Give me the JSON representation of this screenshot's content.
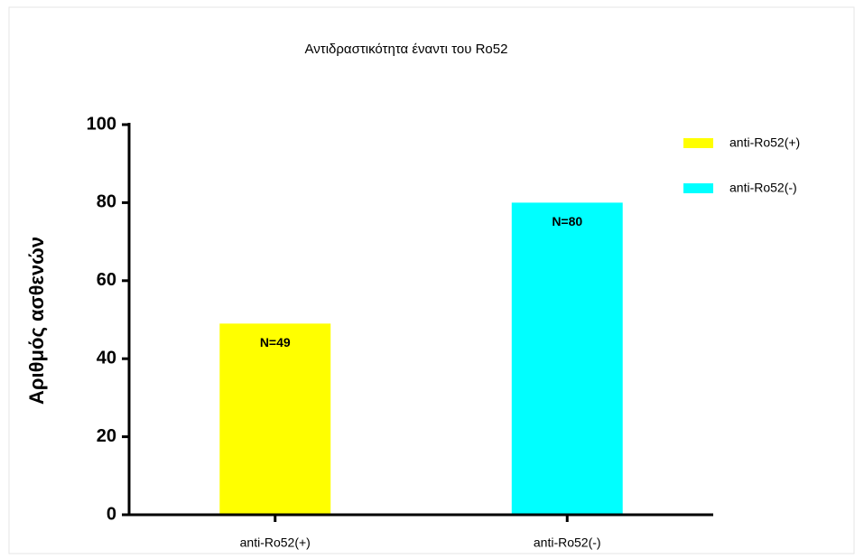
{
  "chart_data": {
    "type": "bar",
    "title": "Αντιδραστικότητα έναντι του Ro52",
    "ylabel": "Αριθμός ασθενών",
    "categories": [
      "anti-Ro52(+)",
      "anti-Ro52(-)"
    ],
    "values": [
      49,
      80
    ],
    "value_labels": [
      "N=49",
      "N=80"
    ],
    "colors": [
      "#ffff00",
      "#00ffff"
    ],
    "ylim": [
      0,
      100
    ],
    "yticks": [
      0,
      20,
      40,
      60,
      80,
      100
    ],
    "grid": false,
    "legend": "upper right"
  }
}
